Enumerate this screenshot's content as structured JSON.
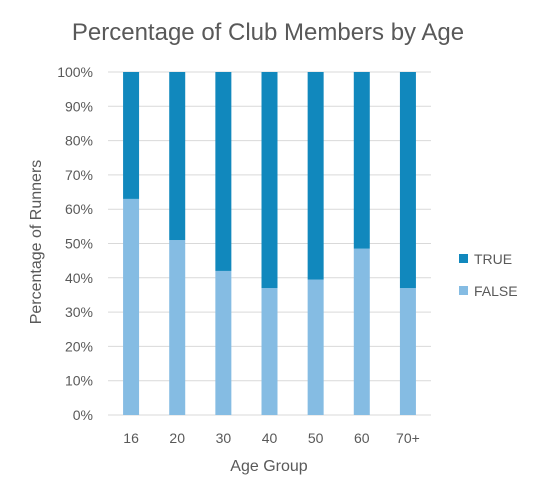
{
  "chart_data": {
    "type": "bar",
    "stacked": "percent",
    "title": "Percentage of Club Members by Age",
    "xlabel": "Age Group",
    "ylabel": "Percentage of Runners",
    "categories": [
      "16",
      "20",
      "30",
      "40",
      "50",
      "60",
      "70+"
    ],
    "series": [
      {
        "name": "FALSE",
        "color": "#85BCE3",
        "values": [
          63,
          51,
          42,
          37,
          39.5,
          48.5,
          37
        ]
      },
      {
        "name": "TRUE",
        "color": "#1188BD",
        "values": [
          37,
          49,
          58,
          63,
          60.5,
          51.5,
          63
        ]
      }
    ],
    "ylim": [
      0,
      100
    ],
    "yticks": [
      "0%",
      "10%",
      "20%",
      "30%",
      "40%",
      "50%",
      "60%",
      "70%",
      "80%",
      "90%",
      "100%"
    ],
    "grid": true,
    "legend_position": "right"
  }
}
